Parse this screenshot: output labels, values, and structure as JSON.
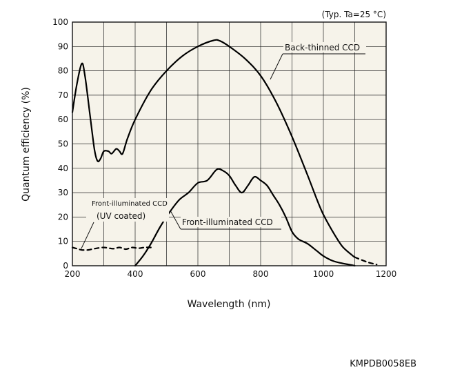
{
  "chart_data": {
    "type": "line",
    "condition": "(Typ. Ta=25 °C)",
    "xlabel": "Wavelength (nm)",
    "ylabel": "Quantum efficiency (%)",
    "xlim": [
      200,
      1200
    ],
    "ylim": [
      0,
      100
    ],
    "x_ticks": [
      200,
      400,
      600,
      800,
      1000,
      1200
    ],
    "y_ticks": [
      0,
      10,
      20,
      30,
      40,
      50,
      60,
      70,
      80,
      90,
      100
    ],
    "grid": true,
    "series": [
      {
        "name": "Back-thinned CCD",
        "style": "solid",
        "points": [
          [
            200,
            63
          ],
          [
            215,
            75
          ],
          [
            230,
            83
          ],
          [
            240,
            78
          ],
          [
            255,
            63
          ],
          [
            270,
            48
          ],
          [
            280,
            43
          ],
          [
            290,
            44
          ],
          [
            300,
            47
          ],
          [
            315,
            47
          ],
          [
            325,
            46
          ],
          [
            340,
            48
          ],
          [
            350,
            47
          ],
          [
            360,
            46
          ],
          [
            375,
            52
          ],
          [
            400,
            60
          ],
          [
            450,
            72
          ],
          [
            500,
            80
          ],
          [
            550,
            86
          ],
          [
            600,
            90
          ],
          [
            650,
            92.5
          ],
          [
            670,
            92.3
          ],
          [
            700,
            90
          ],
          [
            750,
            85
          ],
          [
            800,
            78
          ],
          [
            850,
            67
          ],
          [
            900,
            53
          ],
          [
            950,
            37
          ],
          [
            980,
            27
          ],
          [
            1000,
            21
          ],
          [
            1030,
            14
          ],
          [
            1060,
            8
          ],
          [
            1090,
            4.5
          ],
          [
            1100,
            3.5
          ]
        ]
      },
      {
        "name": "Back-thinned CCD extension",
        "style": "dashed",
        "points": [
          [
            1100,
            3.5
          ],
          [
            1140,
            1.5
          ],
          [
            1170,
            0.5
          ]
        ]
      },
      {
        "name": "Front-illuminated CCD",
        "style": "solid",
        "points": [
          [
            400,
            0
          ],
          [
            425,
            4
          ],
          [
            450,
            9
          ],
          [
            480,
            16
          ],
          [
            510,
            22
          ],
          [
            540,
            27
          ],
          [
            570,
            30
          ],
          [
            600,
            34
          ],
          [
            630,
            35
          ],
          [
            660,
            39.5
          ],
          [
            680,
            39
          ],
          [
            700,
            37
          ],
          [
            720,
            33
          ],
          [
            740,
            30
          ],
          [
            760,
            33
          ],
          [
            780,
            36.5
          ],
          [
            800,
            35
          ],
          [
            820,
            33
          ],
          [
            840,
            29
          ],
          [
            860,
            25
          ],
          [
            880,
            20
          ],
          [
            900,
            14
          ],
          [
            920,
            11
          ],
          [
            950,
            9
          ],
          [
            980,
            6
          ],
          [
            1000,
            4
          ],
          [
            1030,
            2
          ],
          [
            1060,
            1
          ],
          [
            1090,
            0.3
          ],
          [
            1100,
            0
          ]
        ]
      },
      {
        "name": "Front-illuminated CCD (UV coated)",
        "style": "dashed",
        "points": [
          [
            200,
            7.5
          ],
          [
            215,
            7
          ],
          [
            230,
            6.5
          ],
          [
            250,
            6.5
          ],
          [
            270,
            7
          ],
          [
            300,
            7.5
          ],
          [
            330,
            7
          ],
          [
            350,
            7.5
          ],
          [
            370,
            6.8
          ],
          [
            390,
            7.5
          ],
          [
            410,
            7.2
          ],
          [
            430,
            7.5
          ],
          [
            450,
            7.5
          ]
        ]
      }
    ],
    "annotations": {
      "back_thinned": "Back-thinned CCD",
      "front_illuminated": "Front-illuminated CCD",
      "front_uv_line1": "Front-illuminated CCD",
      "front_uv_line2": "(UV coated)"
    }
  },
  "document_code": "KMPDB0058EB"
}
